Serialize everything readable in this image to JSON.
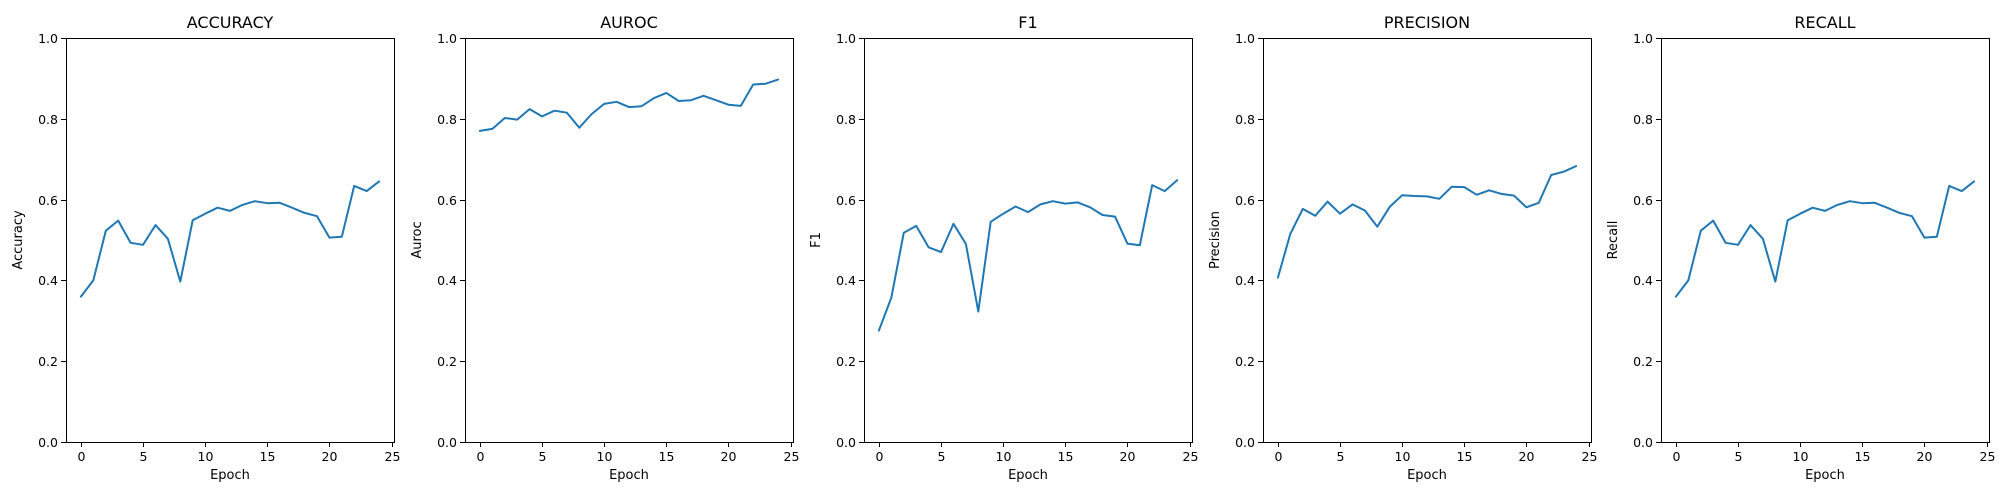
{
  "chart_data": [
    {
      "type": "line",
      "title": "ACCURACY",
      "xlabel": "Epoch",
      "ylabel": "Accuracy",
      "xlim": [
        -1.2,
        25.2
      ],
      "ylim": [
        0,
        1
      ],
      "xticks": [
        0,
        5,
        10,
        15,
        20,
        25
      ],
      "yticks": [
        0.0,
        0.2,
        0.4,
        0.6,
        0.8,
        1.0
      ],
      "grid": false,
      "color": "#1f77b4",
      "x": [
        0,
        1,
        2,
        3,
        4,
        5,
        6,
        7,
        8,
        9,
        10,
        11,
        12,
        13,
        14,
        15,
        16,
        17,
        18,
        19,
        20,
        21,
        22,
        23,
        24
      ],
      "values": [
        0.36,
        0.4,
        0.523,
        0.548,
        0.493,
        0.488,
        0.537,
        0.503,
        0.397,
        0.549,
        0.565,
        0.58,
        0.572,
        0.587,
        0.596,
        0.591,
        0.592,
        0.58,
        0.567,
        0.559,
        0.506,
        0.508,
        0.634,
        0.621,
        0.645
      ]
    },
    {
      "type": "line",
      "title": "AUROC",
      "xlabel": "Epoch",
      "ylabel": "Auroc",
      "xlim": [
        -1.2,
        25.2
      ],
      "ylim": [
        0,
        1
      ],
      "xticks": [
        0,
        5,
        10,
        15,
        20,
        25
      ],
      "yticks": [
        0.0,
        0.2,
        0.4,
        0.6,
        0.8,
        1.0
      ],
      "grid": false,
      "color": "#1f77b4",
      "x": [
        0,
        1,
        2,
        3,
        4,
        5,
        6,
        7,
        8,
        9,
        10,
        11,
        12,
        13,
        14,
        15,
        16,
        17,
        18,
        19,
        20,
        21,
        22,
        23,
        24
      ],
      "values": [
        0.77,
        0.775,
        0.802,
        0.798,
        0.824,
        0.806,
        0.82,
        0.815,
        0.778,
        0.812,
        0.837,
        0.842,
        0.829,
        0.831,
        0.851,
        0.864,
        0.844,
        0.846,
        0.857,
        0.846,
        0.835,
        0.832,
        0.885,
        0.887,
        0.897
      ]
    },
    {
      "type": "line",
      "title": "F1",
      "xlabel": "Epoch",
      "ylabel": "F1",
      "xlim": [
        -1.2,
        25.2
      ],
      "ylim": [
        0,
        1
      ],
      "xticks": [
        0,
        5,
        10,
        15,
        20,
        25
      ],
      "yticks": [
        0.0,
        0.2,
        0.4,
        0.6,
        0.8,
        1.0
      ],
      "grid": false,
      "color": "#1f77b4",
      "x": [
        0,
        1,
        2,
        3,
        4,
        5,
        6,
        7,
        8,
        9,
        10,
        11,
        12,
        13,
        14,
        15,
        16,
        17,
        18,
        19,
        20,
        21,
        22,
        23,
        24
      ],
      "values": [
        0.276,
        0.357,
        0.518,
        0.535,
        0.482,
        0.47,
        0.54,
        0.49,
        0.323,
        0.545,
        0.565,
        0.583,
        0.569,
        0.588,
        0.596,
        0.59,
        0.593,
        0.581,
        0.562,
        0.558,
        0.491,
        0.487,
        0.636,
        0.621,
        0.648
      ]
    },
    {
      "type": "line",
      "title": "PRECISION",
      "xlabel": "Epoch",
      "ylabel": "Precision",
      "xlim": [
        -1.2,
        25.2
      ],
      "ylim": [
        0,
        1
      ],
      "xticks": [
        0,
        5,
        10,
        15,
        20,
        25
      ],
      "yticks": [
        0.0,
        0.2,
        0.4,
        0.6,
        0.8,
        1.0
      ],
      "grid": false,
      "color": "#1f77b4",
      "x": [
        0,
        1,
        2,
        3,
        4,
        5,
        6,
        7,
        8,
        9,
        10,
        11,
        12,
        13,
        14,
        15,
        16,
        17,
        18,
        19,
        20,
        21,
        22,
        23,
        24
      ],
      "values": [
        0.407,
        0.515,
        0.577,
        0.56,
        0.595,
        0.565,
        0.588,
        0.573,
        0.533,
        0.582,
        0.611,
        0.609,
        0.608,
        0.602,
        0.632,
        0.631,
        0.612,
        0.623,
        0.614,
        0.61,
        0.581,
        0.592,
        0.661,
        0.669,
        0.683
      ]
    },
    {
      "type": "line",
      "title": "RECALL",
      "xlabel": "Epoch",
      "ylabel": "Recall",
      "xlim": [
        -1.2,
        25.2
      ],
      "ylim": [
        0,
        1
      ],
      "xticks": [
        0,
        5,
        10,
        15,
        20,
        25
      ],
      "yticks": [
        0.0,
        0.2,
        0.4,
        0.6,
        0.8,
        1.0
      ],
      "grid": false,
      "color": "#1f77b4",
      "x": [
        0,
        1,
        2,
        3,
        4,
        5,
        6,
        7,
        8,
        9,
        10,
        11,
        12,
        13,
        14,
        15,
        16,
        17,
        18,
        19,
        20,
        21,
        22,
        23,
        24
      ],
      "values": [
        0.36,
        0.4,
        0.523,
        0.548,
        0.493,
        0.488,
        0.537,
        0.503,
        0.397,
        0.549,
        0.565,
        0.58,
        0.572,
        0.587,
        0.596,
        0.591,
        0.592,
        0.58,
        0.567,
        0.559,
        0.506,
        0.508,
        0.634,
        0.621,
        0.645
      ]
    }
  ]
}
